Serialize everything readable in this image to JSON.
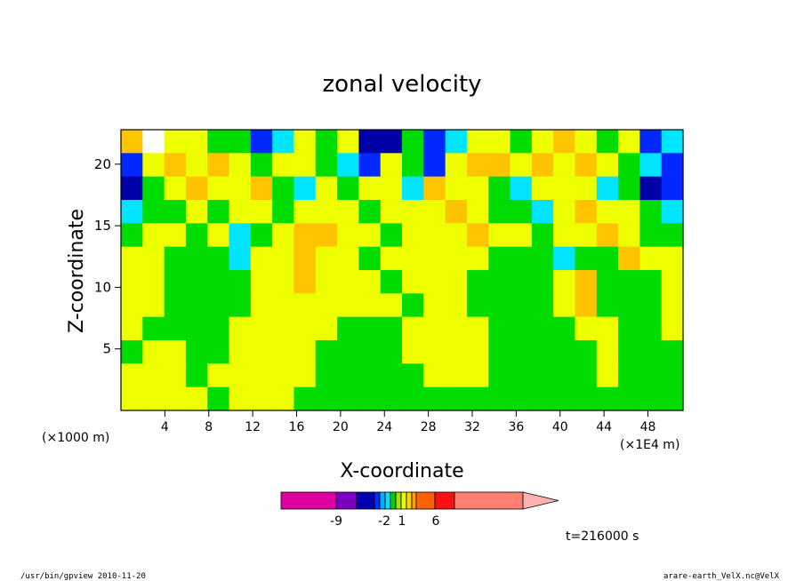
{
  "chart_data": {
    "type": "heatmap",
    "title": "zonal velocity",
    "xlabel": "X-coordinate",
    "ylabel": "Z-coordinate",
    "x_unit_left": "(×1000 m)",
    "x_unit_right": "(×1E4 m)",
    "xlim": [
      0,
      51.2
    ],
    "ylim": [
      0,
      22.8
    ],
    "x_ticks": [
      "4",
      "8",
      "12",
      "16",
      "20",
      "24",
      "28",
      "32",
      "36",
      "40",
      "44",
      "48"
    ],
    "y_ticks": [
      "5",
      "10",
      "15",
      "20"
    ],
    "colorbar": {
      "labels": [
        "-9",
        "-2",
        "1",
        "6"
      ],
      "colors": [
        "#e000a0",
        "#7b00c0",
        "#0000b0",
        "#0030ff",
        "#00b0ff",
        "#00e0ff",
        "#00d000",
        "#a8e000",
        "#e8ff00",
        "#ffd000",
        "#ffa000",
        "#ff6000",
        "#ff1010",
        "#ff8070",
        "#ffb0b0"
      ]
    },
    "time_label": "t=216000 s",
    "field": {
      "rows": 12,
      "cols": 26,
      "z_top_to_bottom": [
        "O2YYGGBCYGYDDGBCYYGYOYGYBC",
        "BYOYOYGYYGCBYGBYOOYOYOYGCB",
        "DGYOYYOGCYGYYCOYYGCYYYCGDB",
        "CGGYGYYGYYYGYYYOYGGCYOYYGC",
        "GYYGYCGYOOYYGYYYOYYGYYOYGG",
        "YYGGGCYYOYYGYYYYYGGGCGGOYY",
        "YYGGGGYYOYYYGYYYGGGGYOGGGY",
        "YYGGGGYYYYYYYGYYGGGGYOGGGY",
        "YGGGGYYYYYGGGYYYYGGGGYYGGY",
        "GYYGGYYYYGGGGYYYYGGGGGYGGG",
        "YYYGYYYYYGGGGGYYYGGGGGYGGG",
        "YYYYGYYYGGGGGGGGGGGGGGGGGG"
      ],
      "legend": {
        "D": "-9 to -5",
        "B": "-5 to -3",
        "C": "-3 to -2",
        "G": "-2 to 0",
        "Y": "0 to 1",
        "O": "1 to 6",
        "R": "6 to 9"
      }
    }
  },
  "colors": {
    "D": "#0000a8",
    "B": "#0028ff",
    "C": "#00e4ff",
    "G": "#00dc00",
    "Y": "#eeff00",
    "O": "#ffc400",
    "R": "#ff5000"
  },
  "footer": {
    "left": "/usr/bin/gpview  2010-11-20",
    "right": "arare-earth_VelX.nc@VelX"
  }
}
